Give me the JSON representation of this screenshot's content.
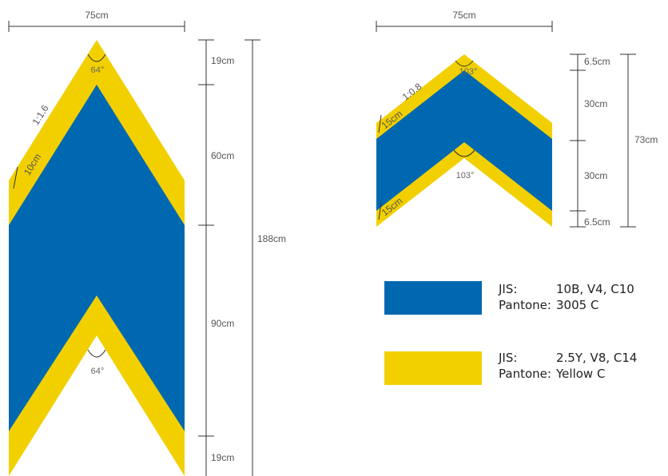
{
  "colors": {
    "blue": "#0068b0",
    "yellow": "#f2d000",
    "line": "#333333"
  },
  "left_figure": {
    "width_label": "75cm",
    "ratio_label": "1:1.6",
    "band_label": "10cm",
    "top_angle": "64°",
    "bottom_angle": "64°",
    "segments": [
      "19cm",
      "60cm",
      "90cm",
      "19cm"
    ],
    "total_label": "188cm"
  },
  "right_figure": {
    "width_label": "75cm",
    "ratio_label": "1:0.8",
    "band_top_label": "15cm",
    "band_bottom_label": "15cm",
    "top_angle": "103°",
    "bottom_angle": "103°",
    "segments": [
      "6.5cm",
      "30cm",
      "30cm",
      "6.5cm"
    ],
    "total_label": "73cm"
  },
  "legend": [
    {
      "color": "#0068b0",
      "jis_key": "JIS:",
      "jis_value": "10B, V4, C10",
      "pantone_key": "Pantone:",
      "pantone_value": "3005 C"
    },
    {
      "color": "#f2d000",
      "jis_key": "JIS:",
      "jis_value": "2.5Y, V8, C14",
      "pantone_key": "Pantone:",
      "pantone_value": "Yellow C"
    }
  ]
}
